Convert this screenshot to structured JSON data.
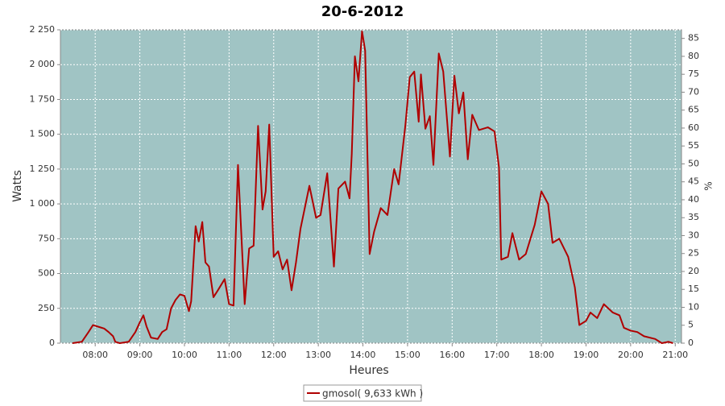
{
  "chart_data": {
    "type": "line",
    "title": "20-6-2012",
    "x_label": "Heures",
    "y_label": "Watts",
    "y2_label": "%",
    "x": [
      7.49,
      7.7,
      7.85,
      7.95,
      8.1,
      8.2,
      8.3,
      8.4,
      8.45,
      8.55,
      8.75,
      8.9,
      9.0,
      9.08,
      9.15,
      9.25,
      9.4,
      9.5,
      9.6,
      9.7,
      9.8,
      9.9,
      10.0,
      10.1,
      10.15,
      10.25,
      10.32,
      10.4,
      10.47,
      10.55,
      10.65,
      10.75,
      10.9,
      11.0,
      11.1,
      11.2,
      11.35,
      11.45,
      11.55,
      11.65,
      11.75,
      11.82,
      11.9,
      12.0,
      12.1,
      12.2,
      12.3,
      12.4,
      12.5,
      12.6,
      12.8,
      12.95,
      13.05,
      13.2,
      13.35,
      13.45,
      13.6,
      13.7,
      13.75,
      13.82,
      13.9,
      13.98,
      14.05,
      14.15,
      14.25,
      14.4,
      14.55,
      14.7,
      14.8,
      14.95,
      15.05,
      15.15,
      15.25,
      15.3,
      15.4,
      15.5,
      15.58,
      15.7,
      15.8,
      15.95,
      16.05,
      16.15,
      16.25,
      16.35,
      16.45,
      16.6,
      16.8,
      16.95,
      17.05,
      17.1,
      17.25,
      17.35,
      17.5,
      17.65,
      17.85,
      18.0,
      18.15,
      18.25,
      18.4,
      18.6,
      18.75,
      18.85,
      19.0,
      19.1,
      19.25,
      19.4,
      19.6,
      19.75,
      19.85,
      20.0,
      20.15,
      20.3,
      20.55,
      20.7,
      20.85,
      20.95
    ],
    "series": [
      {
        "name": "gmosol( 9,633 kWh )",
        "color": "#b00000",
        "values": [
          0,
          10,
          80,
          130,
          115,
          105,
          80,
          50,
          10,
          0,
          10,
          80,
          150,
          200,
          120,
          40,
          30,
          80,
          100,
          250,
          310,
          350,
          340,
          230,
          300,
          840,
          730,
          870,
          580,
          550,
          330,
          380,
          460,
          280,
          270,
          1280,
          280,
          680,
          700,
          1560,
          960,
          1090,
          1570,
          620,
          660,
          530,
          600,
          380,
          580,
          820,
          1130,
          900,
          920,
          1220,
          550,
          1110,
          1160,
          1040,
          1360,
          2060,
          1880,
          2240,
          2100,
          640,
          800,
          970,
          920,
          1250,
          1140,
          1560,
          1910,
          1950,
          1590,
          1930,
          1540,
          1630,
          1280,
          2080,
          1950,
          1340,
          1920,
          1650,
          1800,
          1320,
          1640,
          1530,
          1550,
          1520,
          1260,
          600,
          620,
          790,
          600,
          640,
          850,
          1090,
          1000,
          720,
          750,
          620,
          400,
          130,
          160,
          220,
          180,
          280,
          220,
          200,
          110,
          90,
          80,
          50,
          30,
          0,
          10,
          0
        ]
      }
    ],
    "xlim": [
      7.22,
      21.14
    ],
    "xticks": [
      {
        "value": 8,
        "label": "08:00"
      },
      {
        "value": 9,
        "label": "09:00"
      },
      {
        "value": 10,
        "label": "10:00"
      },
      {
        "value": 11,
        "label": "11:00"
      },
      {
        "value": 12,
        "label": "12:00"
      },
      {
        "value": 13,
        "label": "13:00"
      },
      {
        "value": 14,
        "label": "14:00"
      },
      {
        "value": 15,
        "label": "15:00"
      },
      {
        "value": 16,
        "label": "16:00"
      },
      {
        "value": 17,
        "label": "17:00"
      },
      {
        "value": 18,
        "label": "18:00"
      },
      {
        "value": 19,
        "label": "19:00"
      },
      {
        "value": 20,
        "label": "20:00"
      },
      {
        "value": 21,
        "label": "21:00"
      }
    ],
    "ylim": [
      0,
      2250
    ],
    "yticks": [
      0,
      250,
      500,
      750,
      {
        "value": 1000,
        "label": "1 000"
      },
      {
        "value": 1250,
        "label": "1 250"
      },
      {
        "value": 1500,
        "label": "1 500"
      },
      {
        "value": 1750,
        "label": "1 750"
      },
      {
        "value": 2000,
        "label": "2 000"
      },
      {
        "value": 2250,
        "label": "2 250"
      }
    ],
    "y2lim": [
      0,
      87.4
    ],
    "y2ticks": [
      0,
      5,
      10,
      15,
      20,
      25,
      30,
      35,
      40,
      45,
      50,
      55,
      60,
      65,
      70,
      75,
      80,
      85
    ],
    "grid": true,
    "plot_background": "#a0c4c4",
    "legend": "bottom"
  }
}
